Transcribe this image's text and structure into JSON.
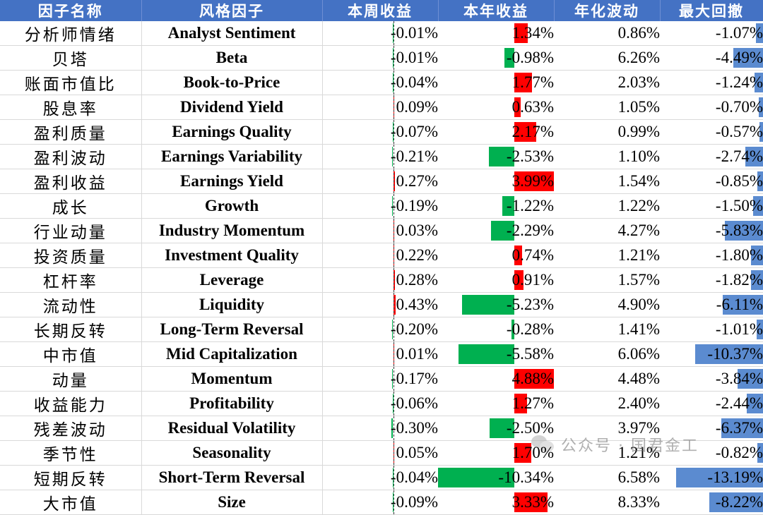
{
  "headers": [
    "因子名称",
    "风格因子",
    "本周收益",
    "本年收益",
    "年化波动",
    "最大回撤"
  ],
  "colors": {
    "header_bg": "#4472c4",
    "positive": "#ff0000",
    "negative": "#00b050",
    "drawdown": "#5b8bd0"
  },
  "rows": [
    {
      "cn": "分析师情绪",
      "en": "Analyst Sentiment",
      "week": -0.01,
      "ytd": 1.34,
      "vol": 0.86,
      "mdd": -1.07
    },
    {
      "cn": "贝塔",
      "en": "Beta",
      "week": -0.01,
      "ytd": -0.98,
      "vol": 6.26,
      "mdd": -4.49
    },
    {
      "cn": "账面市值比",
      "en": "Book-to-Price",
      "week": -0.04,
      "ytd": 1.77,
      "vol": 2.03,
      "mdd": -1.24
    },
    {
      "cn": "股息率",
      "en": "Dividend Yield",
      "week": 0.09,
      "ytd": 0.63,
      "vol": 1.05,
      "mdd": -0.7
    },
    {
      "cn": "盈利质量",
      "en": "Earnings Quality",
      "week": -0.07,
      "ytd": 2.17,
      "vol": 0.99,
      "mdd": -0.57
    },
    {
      "cn": "盈利波动",
      "en": "Earnings Variability",
      "week": -0.21,
      "ytd": -2.53,
      "vol": 1.1,
      "mdd": -2.74
    },
    {
      "cn": "盈利收益",
      "en": "Earnings Yield",
      "week": 0.27,
      "ytd": 3.99,
      "vol": 1.54,
      "mdd": -0.85
    },
    {
      "cn": "成长",
      "en": "Growth",
      "week": -0.19,
      "ytd": -1.22,
      "vol": 1.22,
      "mdd": -1.5
    },
    {
      "cn": "行业动量",
      "en": "Industry Momentum",
      "week": 0.03,
      "ytd": -2.29,
      "vol": 4.27,
      "mdd": -5.83
    },
    {
      "cn": "投资质量",
      "en": "Investment Quality",
      "week": 0.22,
      "ytd": 0.74,
      "vol": 1.21,
      "mdd": -1.8
    },
    {
      "cn": "杠杆率",
      "en": "Leverage",
      "week": 0.28,
      "ytd": 0.91,
      "vol": 1.57,
      "mdd": -1.82
    },
    {
      "cn": "流动性",
      "en": "Liquidity",
      "week": 0.43,
      "ytd": -5.23,
      "vol": 4.9,
      "mdd": -6.11
    },
    {
      "cn": "长期反转",
      "en": "Long-Term Reversal",
      "week": -0.2,
      "ytd": -0.28,
      "vol": 1.41,
      "mdd": -1.01
    },
    {
      "cn": "中市值",
      "en": "Mid Capitalization",
      "week": 0.01,
      "ytd": -5.58,
      "vol": 6.06,
      "mdd": -10.37
    },
    {
      "cn": "动量",
      "en": "Momentum",
      "week": -0.17,
      "ytd": 4.88,
      "vol": 4.48,
      "mdd": -3.84
    },
    {
      "cn": "收益能力",
      "en": "Profitability",
      "week": -0.06,
      "ytd": 1.27,
      "vol": 2.4,
      "mdd": -2.44
    },
    {
      "cn": "残差波动",
      "en": "Residual Volatility",
      "week": -0.3,
      "ytd": -2.5,
      "vol": 3.97,
      "mdd": -6.37
    },
    {
      "cn": "季节性",
      "en": "Seasonality",
      "week": 0.05,
      "ytd": 1.7,
      "vol": 1.21,
      "mdd": -0.82
    },
    {
      "cn": "短期反转",
      "en": "Short-Term Reversal",
      "week": -0.04,
      "ytd": -10.34,
      "vol": 6.58,
      "mdd": -13.19
    },
    {
      "cn": "大市值",
      "en": "Size",
      "week": -0.09,
      "ytd": 3.33,
      "vol": 8.33,
      "mdd": -8.22
    }
  ],
  "watermark": {
    "text": "公众号 · 国君金工",
    "icon": "wechat-icon"
  }
}
